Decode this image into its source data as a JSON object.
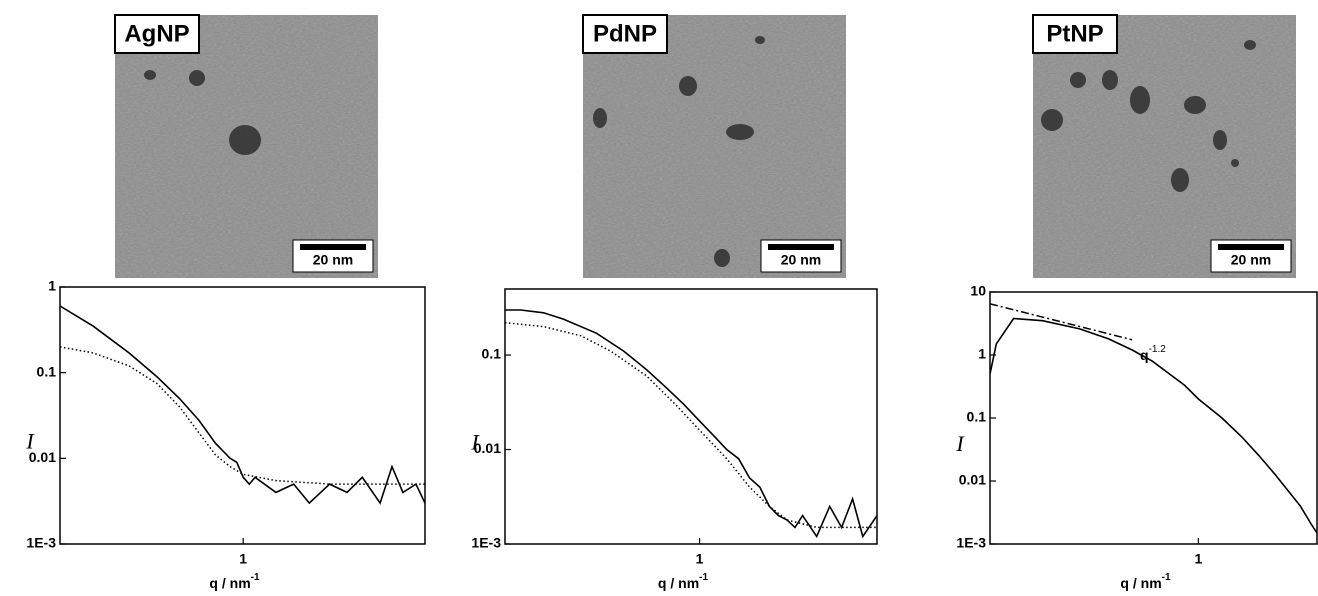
{
  "chart_data": [
    {
      "type": "line",
      "image_label": "AgNP",
      "scale_bar": "20 nm",
      "xlabel": "q / nm",
      "xlabel_sup": "-1",
      "ylabel": "I",
      "log_x": true,
      "log_y": true,
      "xlim": [
        0.23,
        4.3
      ],
      "xticks": [
        1
      ],
      "ylim": [
        0.001,
        1
      ],
      "yticks": [
        {
          "value": 0.001,
          "label": "1E-3"
        },
        0.01,
        0.1,
        1
      ],
      "series": [
        {
          "color": "#000000",
          "dash": "solid",
          "x": [
            0.23,
            0.3,
            0.4,
            0.5,
            0.6,
            0.7,
            0.8,
            0.9,
            0.95,
            1.0,
            1.05,
            1.1,
            1.3,
            1.5,
            1.7,
            2.0,
            2.3,
            2.6,
            3.0,
            3.3,
            3.6,
            4.0,
            4.3
          ],
          "values": [
            0.6,
            0.35,
            0.17,
            0.09,
            0.05,
            0.028,
            0.015,
            0.01,
            0.009,
            0.006,
            0.005,
            0.006,
            0.004,
            0.005,
            0.003,
            0.005,
            0.004,
            0.006,
            0.003,
            0.008,
            0.004,
            0.005,
            0.003
          ]
        },
        {
          "color": "#000000",
          "dash": "dotted",
          "x": [
            0.23,
            0.3,
            0.4,
            0.5,
            0.6,
            0.7,
            0.8,
            0.9,
            1.0,
            1.3,
            2.0,
            3.0,
            4.3
          ],
          "values": [
            0.2,
            0.17,
            0.12,
            0.075,
            0.04,
            0.02,
            0.011,
            0.008,
            0.0065,
            0.0055,
            0.005,
            0.005,
            0.005
          ]
        }
      ]
    },
    {
      "type": "line",
      "image_label": "PdNP",
      "scale_bar": "20 nm",
      "xlabel": "q / nm",
      "xlabel_sup": "-1",
      "ylabel": "I",
      "log_x": true,
      "log_y": true,
      "xlim": [
        0.27,
        3.3
      ],
      "xticks": [
        1
      ],
      "ylim": [
        0.001,
        0.5
      ],
      "yticks": [
        {
          "value": 0.001,
          "label": "1E-3"
        },
        0.01,
        0.1
      ],
      "series": [
        {
          "color": "#000000",
          "dash": "solid",
          "x": [
            0.27,
            0.3,
            0.35,
            0.4,
            0.5,
            0.6,
            0.7,
            0.8,
            0.9,
            1.0,
            1.1,
            1.2,
            1.3,
            1.4,
            1.5,
            1.6,
            1.7,
            1.8,
            1.9,
            2.0,
            2.2,
            2.4,
            2.6,
            2.8,
            3.0,
            3.3
          ],
          "values": [
            0.3,
            0.3,
            0.28,
            0.24,
            0.17,
            0.11,
            0.07,
            0.045,
            0.03,
            0.02,
            0.014,
            0.01,
            0.008,
            0.005,
            0.004,
            0.0025,
            0.002,
            0.0018,
            0.0015,
            0.002,
            0.0012,
            0.0025,
            0.0015,
            0.003,
            0.0012,
            0.002
          ]
        },
        {
          "color": "#000000",
          "dash": "dotted",
          "x": [
            0.27,
            0.35,
            0.45,
            0.55,
            0.7,
            0.85,
            1.0,
            1.2,
            1.4,
            1.6,
            1.8,
            2.2,
            3.3
          ],
          "values": [
            0.22,
            0.2,
            0.16,
            0.11,
            0.06,
            0.03,
            0.016,
            0.008,
            0.004,
            0.0025,
            0.0018,
            0.0015,
            0.0015
          ]
        }
      ]
    },
    {
      "type": "line",
      "image_label": "PtNP",
      "scale_bar": "20 nm",
      "xlabel": "q / nm",
      "xlabel_sup": "-1",
      "ylabel": "I",
      "log_x": true,
      "log_y": true,
      "xlim": [
        0.2,
        2.5
      ],
      "xticks": [
        1
      ],
      "ylim": [
        0.001,
        10
      ],
      "yticks": [
        {
          "value": 0.001,
          "label": "1E-3"
        },
        0.01,
        0.1,
        1,
        10
      ],
      "annotation": {
        "base": "q",
        "sup": "-1.2"
      },
      "series": [
        {
          "color": "#000000",
          "dash": "solid",
          "x": [
            0.2,
            0.21,
            0.24,
            0.3,
            0.4,
            0.5,
            0.6,
            0.7,
            0.8,
            0.9,
            1.0,
            1.2,
            1.4,
            1.6,
            1.8,
            2.0,
            2.2,
            2.4,
            2.5
          ],
          "values": [
            0.5,
            1.5,
            3.8,
            3.5,
            2.6,
            1.8,
            1.2,
            0.8,
            0.5,
            0.33,
            0.2,
            0.1,
            0.05,
            0.025,
            0.013,
            0.007,
            0.004,
            0.002,
            0.0015
          ]
        },
        {
          "color": "#000000",
          "dash": "dashdot",
          "x": [
            0.2,
            0.6
          ],
          "values": [
            6.5,
            1.74
          ]
        }
      ]
    }
  ]
}
